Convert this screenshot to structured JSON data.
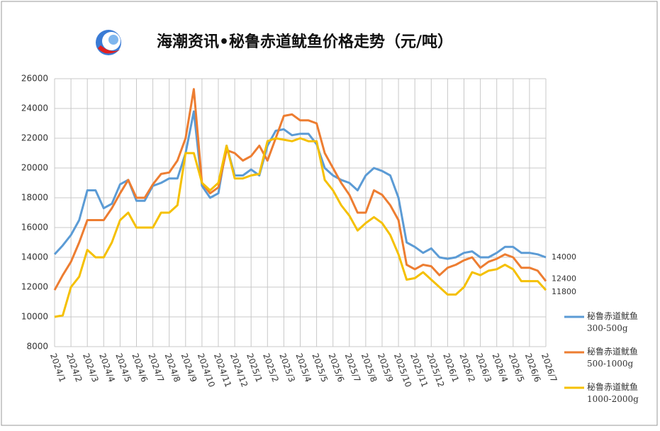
{
  "chart_data": {
    "type": "line",
    "title": "海潮资讯•秘鲁赤道鱿鱼价格走势（元/吨）",
    "categories": [
      "2024/1",
      null,
      "2024/2",
      null,
      "2024/3",
      null,
      "2024/4",
      null,
      "2024/5",
      null,
      "2024/6",
      null,
      "2024/7",
      null,
      "2024/8",
      null,
      "2024/9",
      null,
      "2024/10",
      null,
      "2024/11",
      null,
      "2024/12",
      null,
      "2025/1",
      null,
      "2025/2",
      null,
      "2025/3",
      null,
      "2025/4",
      null,
      "2025/5",
      null,
      "2025/6",
      null,
      "2025/7",
      null,
      "2025/8",
      null,
      "2025/9",
      null,
      "2025/10",
      null,
      "2025/11",
      null,
      "2025/12",
      null,
      "2026/1",
      null,
      "2026/2",
      null,
      "2026/3",
      null,
      "2026/4",
      null,
      "2026/5",
      null,
      "2026/6",
      null,
      "2026/7"
    ],
    "series": [
      {
        "name": "秘鲁赤道鱿鱼\n300-500g",
        "color": "#5b9bd5",
        "values": [
          14200,
          14800,
          15500,
          16500,
          18500,
          18500,
          17300,
          17600,
          18900,
          19200,
          17800,
          17800,
          18800,
          19000,
          19300,
          19300,
          21000,
          23800,
          18800,
          18000,
          18300,
          21500,
          19500,
          19500,
          19900,
          19500,
          21500,
          22500,
          22600,
          22200,
          22300,
          22300,
          21600,
          20000,
          19500,
          19200,
          19000,
          18500,
          19500,
          20000,
          19800,
          19500,
          18000,
          15000,
          14700,
          14300,
          14600,
          14000,
          13900,
          14000,
          14300,
          14400,
          14000,
          14000,
          14300,
          14700,
          14700,
          14300,
          14300,
          14200,
          14000
        ]
      },
      {
        "name": "秘鲁赤道鱿鱼\n500-1000g",
        "color": "#ed7d31",
        "values": [
          11800,
          12800,
          13700,
          15000,
          16500,
          16500,
          16500,
          17300,
          18300,
          19200,
          18000,
          18000,
          18900,
          19600,
          19700,
          20500,
          22000,
          25300,
          19000,
          18300,
          18700,
          21200,
          21000,
          20500,
          20800,
          21500,
          20500,
          22000,
          23500,
          23600,
          23200,
          23200,
          23000,
          21000,
          20000,
          19000,
          18200,
          17000,
          17000,
          18500,
          18200,
          17500,
          16500,
          13500,
          13200,
          13500,
          13400,
          12800,
          13300,
          13500,
          13800,
          14000,
          13300,
          13700,
          13900,
          14200,
          14000,
          13300,
          13300,
          13100,
          12400
        ]
      },
      {
        "name": "秘鲁赤道鱿鱼\n1000-2000g",
        "color": "#f5c000",
        "values": [
          10000,
          10100,
          12000,
          12700,
          14500,
          14000,
          14000,
          15000,
          16500,
          17000,
          16000,
          16000,
          16000,
          17000,
          17000,
          17500,
          21000,
          21000,
          19000,
          18500,
          19000,
          21500,
          19300,
          19300,
          19500,
          19600,
          21800,
          22000,
          21900,
          21800,
          22000,
          21800,
          21800,
          19200,
          18500,
          17500,
          16800,
          15800,
          16300,
          16700,
          16300,
          15500,
          14200,
          12500,
          12600,
          13000,
          12500,
          12000,
          11500,
          11500,
          12000,
          13000,
          12800,
          13100,
          13200,
          13500,
          13200,
          12400,
          12400,
          12400,
          11800
        ]
      }
    ],
    "ylim": [
      8000,
      26000
    ],
    "yticks": [
      8000,
      10000,
      12000,
      14000,
      16000,
      18000,
      20000,
      22000,
      24000,
      26000
    ],
    "grid": true
  }
}
